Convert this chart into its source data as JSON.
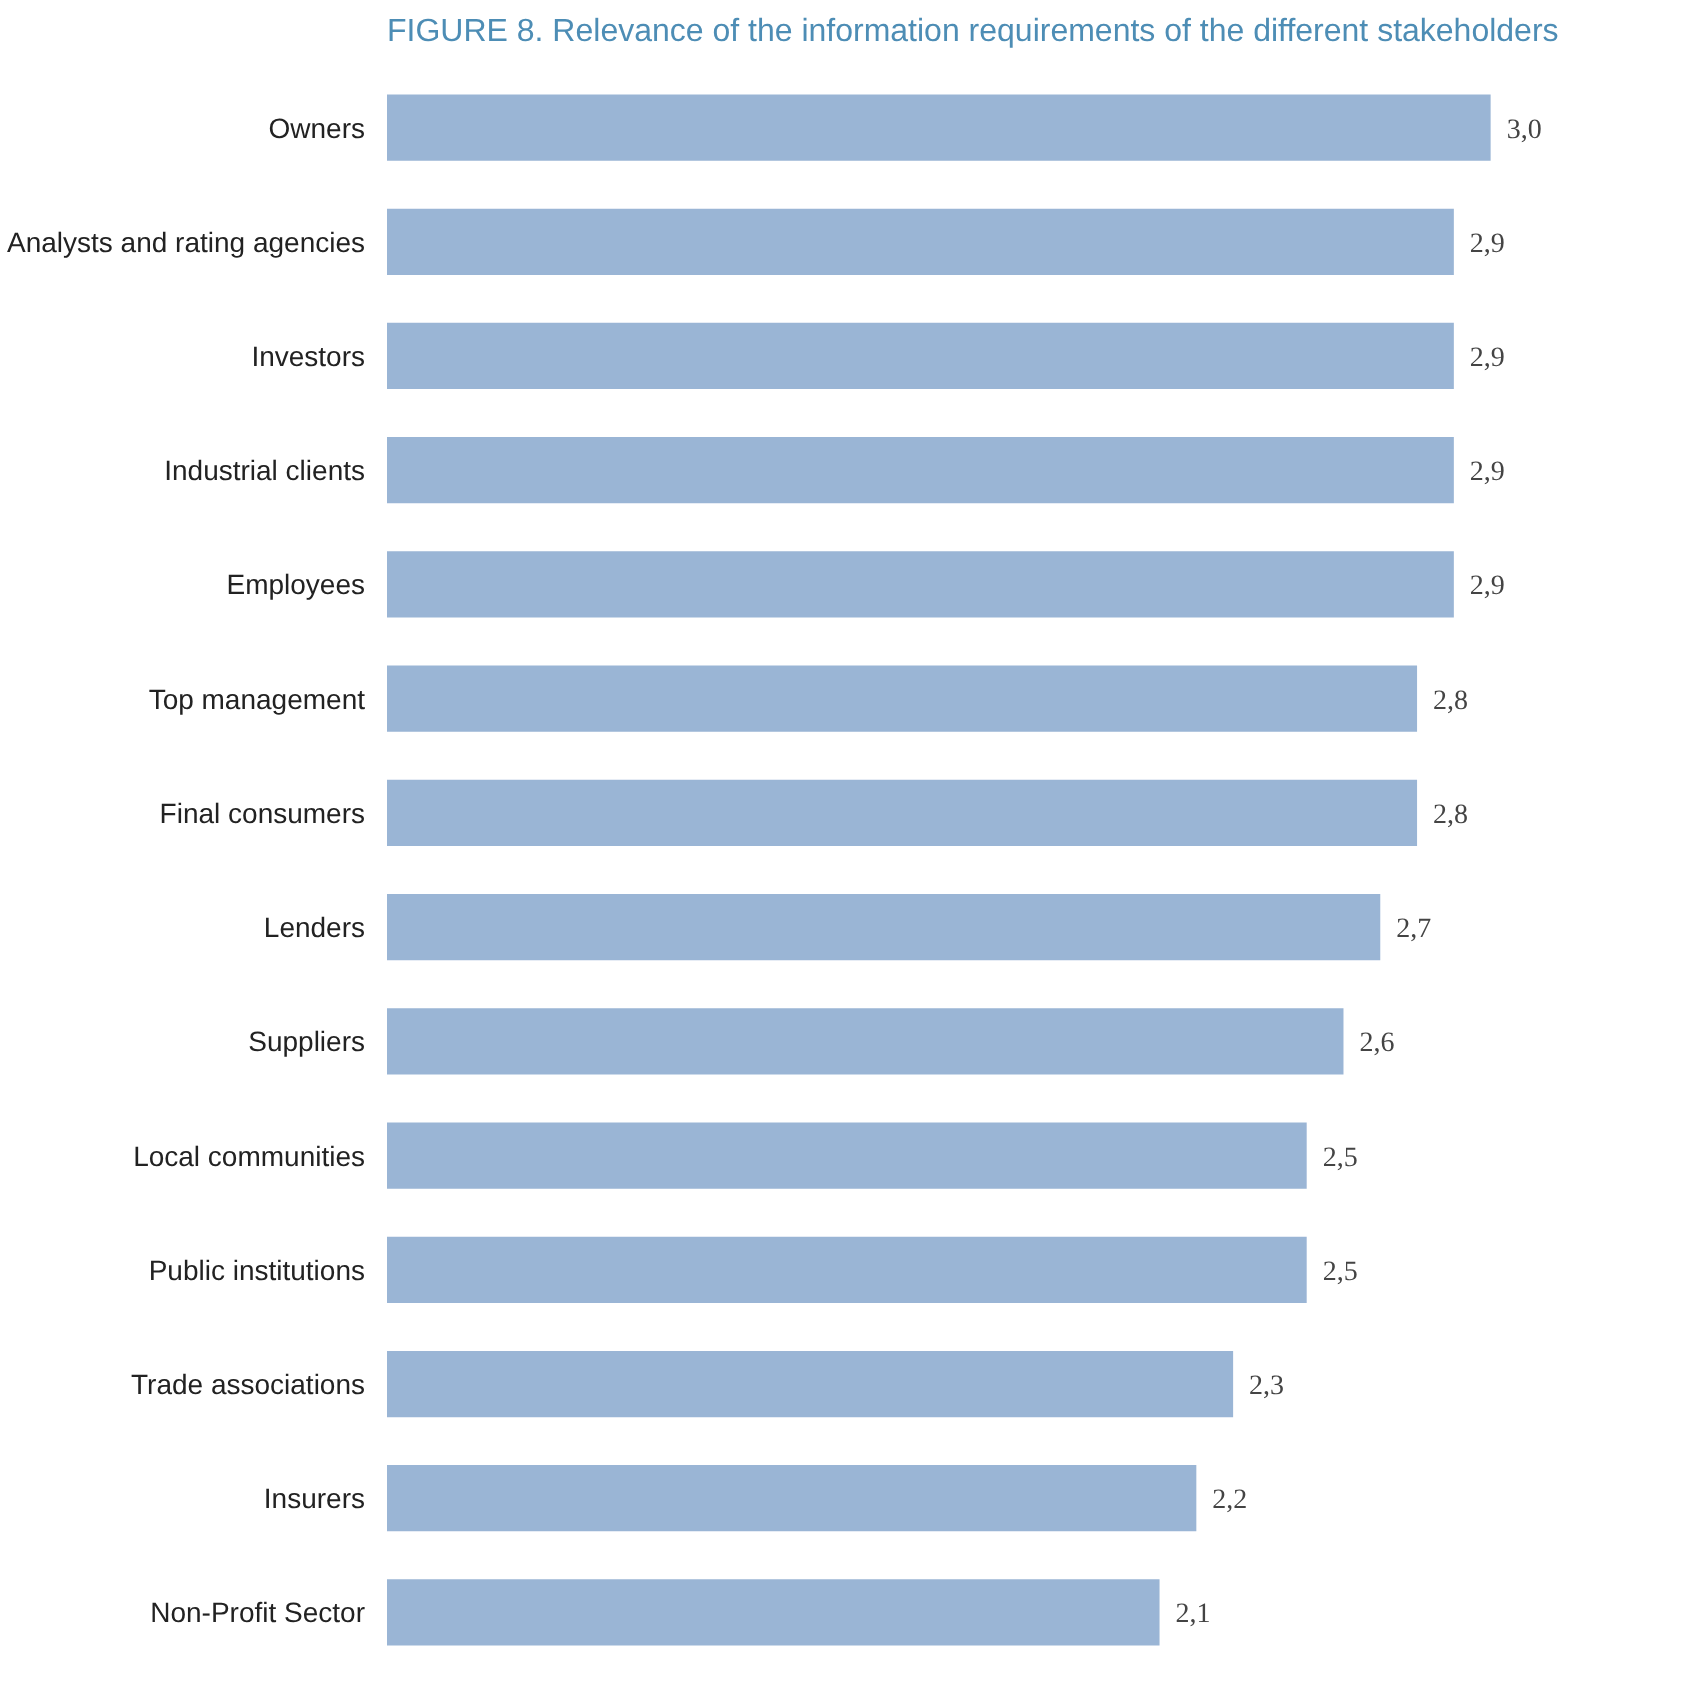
{
  "chart_data": {
    "type": "bar",
    "orientation": "horizontal",
    "title": "FIGURE 8. Relevance of the information requirements of the different stakeholders",
    "categories": [
      "Owners",
      "Analysts and rating agencies",
      "Investors",
      "Industrial clients",
      "Employees",
      "Top management",
      "Final consumers",
      "Lenders",
      "Suppliers",
      "Local communities",
      "Public institutions",
      "Trade associations",
      "Insurers",
      "Non-Profit Sector"
    ],
    "values": [
      3.0,
      2.9,
      2.9,
      2.9,
      2.9,
      2.8,
      2.8,
      2.7,
      2.6,
      2.5,
      2.5,
      2.3,
      2.2,
      2.1
    ],
    "value_labels": [
      "3,0",
      "2,9",
      "2,9",
      "2,9",
      "2,9",
      "2,8",
      "2,8",
      "2,7",
      "2,6",
      "2,5",
      "2,5",
      "2,3",
      "2,2",
      "2,1"
    ],
    "color": "#9ab5d5",
    "tick_labels": "y",
    "grid": false
  }
}
